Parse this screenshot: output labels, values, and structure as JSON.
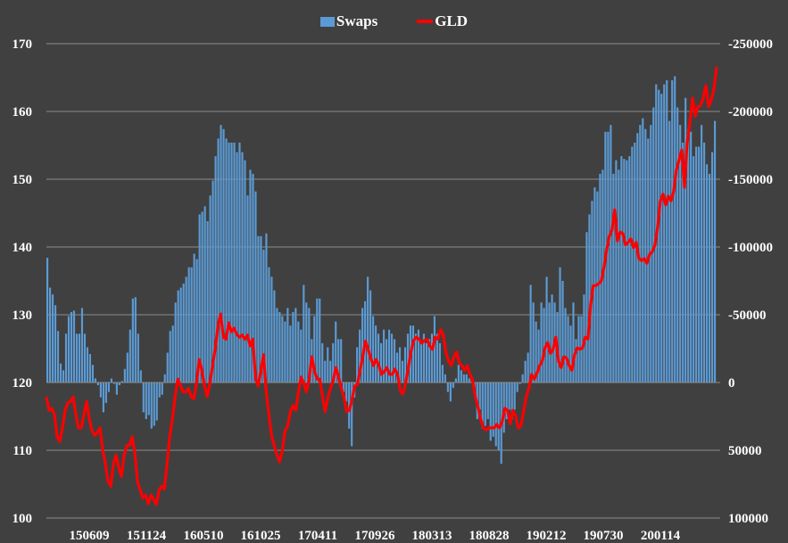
{
  "chart_data": {
    "type": "bar+line",
    "title": "",
    "legend": {
      "position": "top-center",
      "entries": [
        "Swaps",
        "GLD"
      ]
    },
    "colors": {
      "Swaps": "#5b9bd5",
      "GLD": "#ff0000",
      "background": "#404040",
      "grid": "#8c8c8c"
    },
    "left_axis": {
      "series": "GLD",
      "ylim": [
        100,
        170
      ],
      "ticks": [
        "170",
        "160",
        "150",
        "140",
        "130",
        "120",
        "110",
        "100"
      ],
      "tick_values": [
        170,
        160,
        150,
        140,
        130,
        120,
        110,
        100
      ]
    },
    "right_axis": {
      "series": "Swaps",
      "ylim": [
        100000,
        -250000
      ],
      "inverted": true,
      "ticks": [
        "-250000",
        "-200000",
        "-150000",
        "-100000",
        "-50000",
        "0",
        "50000",
        "100000"
      ],
      "tick_values": [
        -250000,
        -200000,
        -150000,
        -100000,
        -50000,
        0,
        50000,
        100000
      ]
    },
    "x_tick_labels": [
      "150609",
      "151124",
      "160510",
      "161025",
      "170411",
      "170926",
      "180313",
      "180828",
      "190212",
      "190730",
      "200114"
    ],
    "grid": true,
    "series": [
      {
        "name": "Swaps",
        "type": "bar",
        "values": [
          -92000,
          -70000,
          -65000,
          -57000,
          -38000,
          -14000,
          -9000,
          -36000,
          -49000,
          -52000,
          -53000,
          -36000,
          -36000,
          -55000,
          -36000,
          -26000,
          -21000,
          -13000,
          -3000,
          2000,
          11000,
          22000,
          15000,
          7000,
          -3000,
          1000,
          9000,
          2000,
          -1000,
          -10000,
          -22000,
          -39000,
          -62000,
          -63000,
          -36000,
          -9000,
          22000,
          27000,
          24000,
          34000,
          32000,
          28000,
          11000,
          9000,
          -6000,
          -22000,
          -38000,
          -42000,
          -59000,
          -68000,
          -70000,
          -73000,
          -78000,
          -85000,
          -85000,
          -95000,
          -91000,
          -124000,
          -126000,
          -130000,
          -119000,
          -138000,
          -149000,
          -167000,
          -180000,
          -190000,
          -187000,
          -180000,
          -177000,
          -177000,
          -177000,
          -170000,
          -177000,
          -170000,
          -164000,
          -138000,
          -157000,
          -154000,
          -141000,
          -108000,
          -108000,
          -98000,
          -110000,
          -85000,
          -78000,
          -68000,
          -55000,
          -52000,
          -49000,
          -45000,
          -55000,
          -42000,
          -52000,
          -55000,
          -45000,
          -39000,
          -72000,
          -59000,
          -55000,
          -32000,
          -49000,
          -62000,
          -62000,
          -29000,
          -16000,
          -26000,
          -16000,
          -29000,
          -45000,
          -32000,
          -32000,
          7000,
          14000,
          34000,
          47000,
          11000,
          -26000,
          -39000,
          -55000,
          -60000,
          -78000,
          -68000,
          -49000,
          -42000,
          -36000,
          -29000,
          -39000,
          -32000,
          -39000,
          -36000,
          -32000,
          -22000,
          -26000,
          -16000,
          -26000,
          -36000,
          -42000,
          -42000,
          -36000,
          -39000,
          -29000,
          -36000,
          -29000,
          -32000,
          -36000,
          -49000,
          -36000,
          -29000,
          -13000,
          -6000,
          7000,
          14000,
          4000,
          -3000,
          -13000,
          -9000,
          -6000,
          -6000,
          -3000,
          -1000,
          4000,
          27000,
          20000,
          34000,
          32000,
          27000,
          43000,
          40000,
          47000,
          50000,
          60000,
          37000,
          27000,
          20000,
          27000,
          20000,
          7000,
          1000,
          -6000,
          -16000,
          -22000,
          -72000,
          -59000,
          -45000,
          -39000,
          -59000,
          -55000,
          -78000,
          -59000,
          -65000,
          -59000,
          -52000,
          -85000,
          -75000,
          -55000,
          -49000,
          -42000,
          -59000,
          -32000,
          -49000,
          -49000,
          -65000,
          -111000,
          -124000,
          -134000,
          -144000,
          -141000,
          -154000,
          -157000,
          -185000,
          -185000,
          -190000,
          -154000,
          -164000,
          -157000,
          -167000,
          -165000,
          -164000,
          -167000,
          -174000,
          -177000,
          -184000,
          -190000,
          -195000,
          -187000,
          -180000,
          -190000,
          -203000,
          -220000,
          -216000,
          -213000,
          -220000,
          -223000,
          -193000,
          -223000,
          -226000,
          -203000,
          -190000,
          -177000,
          -210000,
          -187000,
          -185000,
          -167000,
          -174000,
          -174000,
          -190000,
          -177000,
          -161000,
          -154000,
          -170000,
          -193000
        ]
      },
      {
        "name": "GLD",
        "type": "line",
        "values": [
          117.9,
          115.9,
          116.2,
          115.3,
          112.0,
          111.3,
          113.3,
          115.9,
          117.0,
          117.2,
          117.9,
          115.3,
          113.3,
          113.3,
          115.3,
          117.2,
          114.6,
          112.9,
          112.2,
          112.6,
          113.3,
          110.0,
          108.0,
          105.4,
          104.7,
          108.0,
          109.3,
          107.4,
          106.1,
          109.3,
          110.7,
          110.7,
          112.0,
          109.6,
          105.4,
          104.1,
          103.0,
          103.4,
          102.1,
          103.4,
          102.8,
          102.0,
          104.1,
          104.7,
          104.3,
          108.0,
          112.0,
          114.6,
          117.9,
          120.5,
          119.6,
          118.6,
          118.6,
          119.1,
          117.9,
          117.6,
          119.9,
          123.4,
          121.8,
          119.5,
          117.9,
          119.9,
          122.5,
          125.1,
          128.4,
          130.1,
          126.7,
          126.4,
          128.8,
          127.5,
          128.0,
          127.1,
          126.7,
          127.0,
          126.4,
          127.0,
          125.4,
          126.4,
          120.7,
          119.5,
          121.8,
          124.1,
          118.6,
          115.3,
          112.2,
          110.7,
          109.3,
          108.3,
          110.0,
          112.9,
          113.6,
          115.7,
          116.6,
          115.9,
          118.6,
          120.8,
          119.9,
          118.6,
          120.5,
          123.8,
          121.7,
          120.5,
          120.5,
          117.9,
          115.7,
          117.8,
          119.2,
          120.3,
          122.2,
          120.8,
          119.2,
          117.9,
          115.7,
          115.9,
          117.5,
          119.5,
          119.7,
          121.8,
          123.8,
          126.1,
          124.9,
          123.6,
          122.5,
          123.4,
          122.5,
          121.2,
          121.6,
          122.2,
          121.2,
          121.2,
          122.0,
          121.2,
          118.8,
          118.3,
          119.9,
          122.2,
          124.5,
          126.2,
          126.7,
          126.4,
          125.8,
          126.2,
          126.4,
          125.4,
          124.9,
          126.7,
          126.4,
          127.8,
          127.1,
          124.5,
          123.2,
          122.5,
          123.8,
          124.5,
          122.9,
          122.5,
          121.8,
          122.5,
          121.2,
          120.4,
          117.9,
          116.4,
          114.6,
          113.3,
          113.0,
          113.3,
          113.3,
          113.3,
          113.8,
          113.3,
          114.2,
          116.2,
          115.9,
          113.9,
          115.9,
          115.1,
          113.3,
          113.6,
          115.7,
          117.9,
          119.2,
          121.2,
          120.5,
          121.4,
          122.5,
          123.2,
          125.1,
          125.9,
          124.3,
          124.9,
          126.7,
          123.2,
          122.2,
          123.8,
          123.6,
          122.5,
          121.8,
          124.1,
          125.1,
          124.9,
          125.1,
          126.7,
          126.4,
          131.4,
          134.3,
          134.3,
          134.6,
          135.0,
          137.0,
          139.6,
          141.6,
          142.5,
          145.5,
          140.9,
          142.2,
          142.0,
          140.3,
          140.7,
          141.2,
          139.9,
          140.7,
          138.3,
          138.0,
          138.3,
          137.6,
          138.9,
          139.3,
          140.3,
          142.9,
          146.8,
          147.8,
          146.2,
          147.5,
          146.8,
          148.2,
          151.4,
          152.8,
          154.3,
          148.8,
          155.4,
          158.3,
          162.0,
          159.3,
          160.7,
          160.9,
          162.0,
          163.8,
          160.7,
          161.7,
          163.3,
          166.6
        ]
      }
    ]
  }
}
